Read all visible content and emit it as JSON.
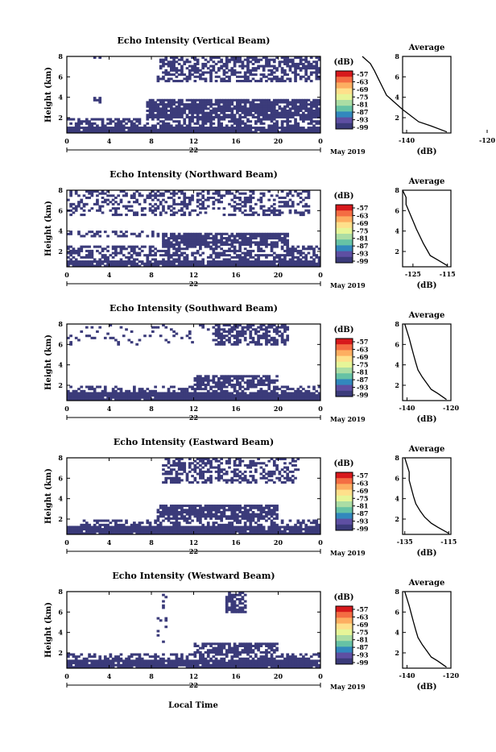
{
  "figure": {
    "xlabel": "Local Time",
    "date_label": "May 2019",
    "day_label": "22",
    "x_ticks": [
      "0",
      "4",
      "8",
      "12",
      "16",
      "20",
      "0"
    ],
    "y_ticks": [
      "2",
      "4",
      "6",
      "8"
    ],
    "ylabel": "Height (km)",
    "cb_unit": "(dB)",
    "cb_ticks": [
      "-57",
      "-63",
      "-69",
      "-75",
      "-81",
      "-87",
      "-93",
      "-99"
    ],
    "cb_colors": [
      "#d7191c",
      "#f46d43",
      "#fdae61",
      "#fee08b",
      "#e6f598",
      "#abdda4",
      "#66c2a5",
      "#3288bd",
      "#5e4fa2",
      "#3b3b7a"
    ],
    "mask_color": "#3b3b7a",
    "avg_title": "Average",
    "avg_xlabel": "(dB)"
  },
  "chart_data": [
    {
      "type": "heatmap",
      "title": "Echo Intensity (Vertical Beam)",
      "xlabel": "Local Time",
      "ylabel": "Height (km)",
      "xlim": [
        0,
        24
      ],
      "ylim": [
        0.5,
        8
      ],
      "colorbar": {
        "label": "(dB)",
        "range": [
          -99,
          -57
        ]
      },
      "regions": [
        {
          "h": [
            0.5,
            1.2
          ],
          "t": [
            0,
            24
          ],
          "d": 0.97
        },
        {
          "h": [
            1.2,
            2.0
          ],
          "t": [
            0,
            24
          ],
          "d": 0.55
        },
        {
          "h": [
            2.0,
            3.8
          ],
          "t": [
            7.5,
            24
          ],
          "d": 0.85
        },
        {
          "h": [
            3.2,
            4.0
          ],
          "t": [
            2.5,
            3.5
          ],
          "d": 0.5
        },
        {
          "h": [
            5.5,
            8.0
          ],
          "t": [
            8.5,
            24
          ],
          "d": 0.55
        },
        {
          "h": [
            7.5,
            8.0
          ],
          "t": [
            2.5,
            3.5
          ],
          "d": 0.4
        }
      ],
      "average": {
        "x": [
          -130,
          -134,
          -137,
          -139,
          -141,
          -143,
          -145,
          -146,
          -147,
          -148,
          -149,
          -151
        ],
        "y": [
          0.6,
          1.2,
          1.6,
          2.2,
          2.8,
          3.5,
          4.2,
          5.0,
          5.8,
          6.6,
          7.3,
          8.0
        ],
        "xlim": [
          -141,
          -129
        ],
        "xticks": [
          "-140",
          "-120"
        ],
        "yticks": [
          "2",
          "4",
          "6",
          "8"
        ]
      }
    },
    {
      "type": "heatmap",
      "title": "Echo Intensity (Northward Beam)",
      "xlabel": "Local Time",
      "ylabel": "Height (km)",
      "xlim": [
        0,
        24
      ],
      "ylim": [
        0.5,
        8
      ],
      "colorbar": {
        "label": "(dB)",
        "range": [
          -99,
          -57
        ]
      },
      "regions": [
        {
          "h": [
            0.5,
            1.2
          ],
          "t": [
            0,
            24
          ],
          "d": 0.95
        },
        {
          "h": [
            1.2,
            2.5
          ],
          "t": [
            0,
            24
          ],
          "d": 0.5
        },
        {
          "h": [
            2.5,
            3.8
          ],
          "t": [
            9,
            21
          ],
          "d": 0.85
        },
        {
          "h": [
            3.4,
            4.0
          ],
          "t": [
            0,
            9
          ],
          "d": 0.45
        },
        {
          "h": [
            5.5,
            8.0
          ],
          "t": [
            0,
            23
          ],
          "d": 0.4
        }
      ],
      "average": {
        "x": [
          -115,
          -118,
          -120,
          -121,
          -122,
          -123,
          -124,
          -125,
          -126,
          -127,
          -127,
          -128
        ],
        "y": [
          0.6,
          1.2,
          1.6,
          2.2,
          2.8,
          3.5,
          4.2,
          5.0,
          5.8,
          6.6,
          7.3,
          8.0
        ],
        "xlim": [
          -128,
          -114
        ],
        "xticks": [
          "-125",
          "-115"
        ],
        "yticks": [
          "2",
          "4",
          "6",
          "8"
        ]
      }
    },
    {
      "type": "heatmap",
      "title": "Echo Intensity (Southward Beam)",
      "xlabel": "Local Time",
      "ylabel": "Height (km)",
      "xlim": [
        0,
        24
      ],
      "ylim": [
        0.5,
        8
      ],
      "colorbar": {
        "label": "(dB)",
        "range": [
          -99,
          -57
        ]
      },
      "regions": [
        {
          "h": [
            0.5,
            1.3
          ],
          "t": [
            0,
            24
          ],
          "d": 0.97
        },
        {
          "h": [
            1.3,
            2.0
          ],
          "t": [
            0,
            24
          ],
          "d": 0.45
        },
        {
          "h": [
            2.0,
            2.9
          ],
          "t": [
            12,
            20
          ],
          "d": 0.8
        },
        {
          "h": [
            6.0,
            8.0
          ],
          "t": [
            14,
            21
          ],
          "d": 0.6
        },
        {
          "h": [
            6.0,
            8.0
          ],
          "t": [
            0,
            14
          ],
          "d": 0.08
        }
      ],
      "average": {
        "x": [
          -122,
          -126,
          -129,
          -131,
          -133,
          -135,
          -136,
          -137,
          -138,
          -139,
          -140,
          -141
        ],
        "y": [
          0.6,
          1.2,
          1.6,
          2.2,
          2.8,
          3.5,
          4.2,
          5.0,
          5.8,
          6.6,
          7.3,
          8.0
        ],
        "xlim": [
          -142,
          -120
        ],
        "xticks": [
          "-140",
          "-120"
        ],
        "yticks": [
          "2",
          "4",
          "6",
          "8"
        ]
      }
    },
    {
      "type": "heatmap",
      "title": "Echo Intensity (Eastward Beam)",
      "xlabel": "Local Time",
      "ylabel": "Height (km)",
      "xlim": [
        0,
        24
      ],
      "ylim": [
        0.5,
        8
      ],
      "colorbar": {
        "label": "(dB)",
        "range": [
          -99,
          -57
        ]
      },
      "regions": [
        {
          "h": [
            0.5,
            1.3
          ],
          "t": [
            0,
            24
          ],
          "d": 0.97
        },
        {
          "h": [
            1.3,
            2.0
          ],
          "t": [
            1,
            24
          ],
          "d": 0.5
        },
        {
          "h": [
            2.0,
            3.5
          ],
          "t": [
            8.5,
            20
          ],
          "d": 0.8
        },
        {
          "h": [
            5.5,
            8.0
          ],
          "t": [
            9,
            22
          ],
          "d": 0.45
        }
      ],
      "average": {
        "x": [
          -115,
          -120,
          -123,
          -126,
          -128,
          -130,
          -131,
          -132,
          -133,
          -133,
          -134,
          -135
        ],
        "y": [
          0.6,
          1.2,
          1.6,
          2.2,
          2.8,
          3.5,
          4.2,
          5.0,
          5.8,
          6.6,
          7.3,
          8.0
        ],
        "xlim": [
          -136,
          -114
        ],
        "xticks": [
          "-135",
          "-115"
        ],
        "yticks": [
          "2",
          "4",
          "6",
          "8"
        ]
      }
    },
    {
      "type": "heatmap",
      "title": "Echo Intensity (Westward Beam)",
      "xlabel": "Local Time",
      "ylabel": "Height (km)",
      "xlim": [
        0,
        24
      ],
      "ylim": [
        0.5,
        8
      ],
      "colorbar": {
        "label": "(dB)",
        "range": [
          -99,
          -57
        ]
      },
      "regions": [
        {
          "h": [
            0.5,
            1.3
          ],
          "t": [
            0,
            24
          ],
          "d": 0.97
        },
        {
          "h": [
            1.3,
            2.0
          ],
          "t": [
            0,
            24
          ],
          "d": 0.5
        },
        {
          "h": [
            2.0,
            2.9
          ],
          "t": [
            12,
            20
          ],
          "d": 0.75
        },
        {
          "h": [
            6.0,
            8.0
          ],
          "t": [
            15,
            17
          ],
          "d": 0.7
        },
        {
          "h": [
            3.0,
            8.0
          ],
          "t": [
            8.5,
            9.5
          ],
          "d": 0.15
        }
      ],
      "average": {
        "x": [
          -122,
          -126,
          -129,
          -131,
          -133,
          -135,
          -136,
          -137,
          -138,
          -139,
          -140,
          -141
        ],
        "y": [
          0.6,
          1.2,
          1.6,
          2.2,
          2.8,
          3.5,
          4.2,
          5.0,
          5.8,
          6.6,
          7.3,
          8.0
        ],
        "xlim": [
          -142,
          -120
        ],
        "xticks": [
          "-140",
          "-120"
        ],
        "yticks": [
          "2",
          "4",
          "6",
          "8"
        ]
      }
    }
  ]
}
